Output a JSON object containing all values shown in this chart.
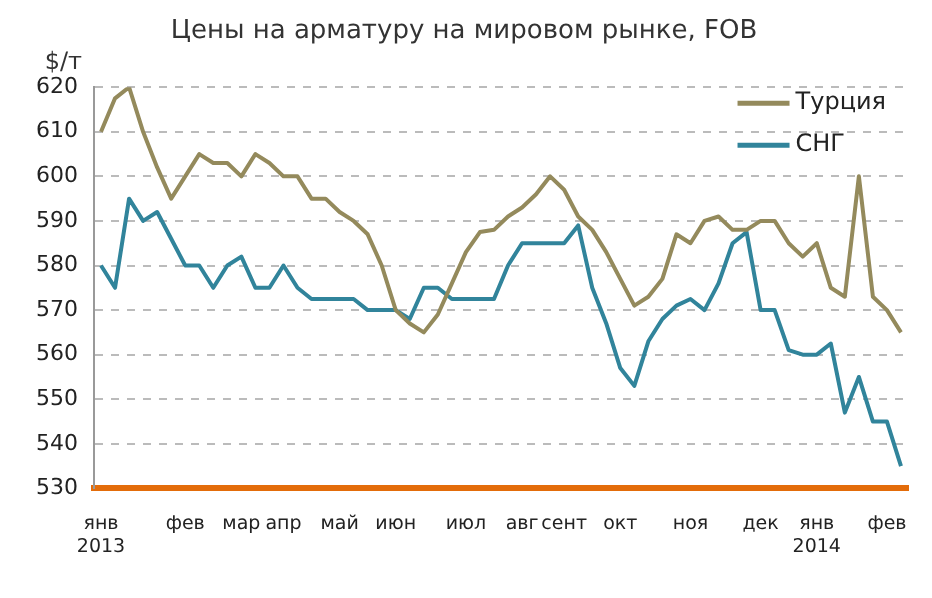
{
  "chart_data": {
    "type": "line",
    "title": "Цены на арматуру на мировом рынке, FOB",
    "ylabel": "$/т",
    "categories": [
      "янв\n2013",
      null,
      null,
      null,
      null,
      null,
      "фев",
      null,
      null,
      null,
      "мар",
      null,
      null,
      "апр",
      null,
      null,
      null,
      "май",
      null,
      null,
      null,
      "июн",
      null,
      null,
      null,
      null,
      "июл",
      null,
      null,
      null,
      "авг",
      null,
      null,
      "сент",
      null,
      null,
      null,
      "окт",
      null,
      null,
      null,
      null,
      "ноя",
      null,
      null,
      null,
      null,
      "дек",
      null,
      null,
      null,
      "янв\n2014",
      null,
      null,
      null,
      null,
      "фев",
      null
    ],
    "series": [
      {
        "name": "Турция",
        "color": "#948a5c",
        "values": [
          610,
          617.5,
          620,
          610,
          602,
          595,
          600,
          605,
          603,
          603,
          600,
          605,
          603,
          600,
          600,
          595,
          595,
          592,
          590,
          587,
          580,
          570,
          567,
          565,
          569,
          576,
          583,
          587.5,
          588,
          591,
          593,
          596,
          600,
          597,
          591,
          588,
          583,
          577,
          571,
          573,
          577,
          587,
          585,
          590,
          591,
          588,
          588,
          590,
          590,
          585,
          582,
          585,
          575,
          573,
          600,
          573,
          570,
          565
        ]
      },
      {
        "name": "СНГ",
        "color": "#31849b",
        "values": [
          580,
          575,
          595,
          590,
          592,
          586,
          580,
          580,
          575,
          580,
          582,
          575,
          575,
          580,
          575,
          572.5,
          572.5,
          572.5,
          572.5,
          570,
          570,
          570,
          568,
          575,
          575,
          572.5,
          572.5,
          572.5,
          572.5,
          580,
          585,
          585,
          585,
          585,
          589,
          575,
          567,
          557,
          553,
          563,
          568,
          571,
          572.5,
          570,
          576,
          585,
          587.5,
          570,
          570,
          561,
          560,
          560,
          562.5,
          547,
          555,
          545,
          545,
          535
        ]
      }
    ],
    "ylim": [
      530,
      620
    ],
    "yticks": [
      530,
      540,
      550,
      560,
      570,
      580,
      590,
      600,
      610,
      620
    ],
    "grid": "y",
    "legend": "top right",
    "marker": "none",
    "line_style": "solid"
  }
}
